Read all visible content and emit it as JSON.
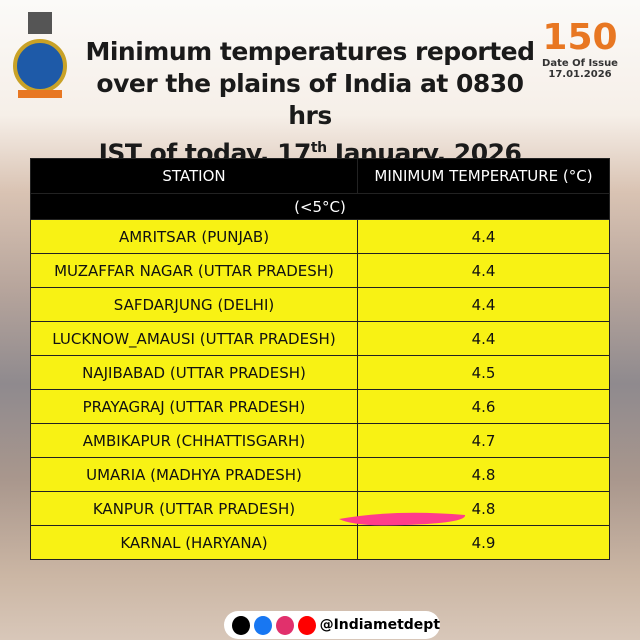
{
  "header": {
    "title_lines": [
      [
        "Minimum temperatures reported"
      ],
      [
        "over the plains of India at 0830 hrs"
      ],
      [
        "IST of today, 17",
        "th",
        " January, 2026"
      ]
    ],
    "badge": "150",
    "issue_label": "Date Of Issue",
    "issue_date": "17.01.2026"
  },
  "table": {
    "columns": [
      "STATION",
      "MINIMUM TEMPERATURE (°C)"
    ],
    "group": "(<5°C)",
    "rows": [
      [
        "AMRITSAR  (PUNJAB)",
        4.4
      ],
      [
        "MUZAFFAR NAGAR (UTTAR PRADESH)",
        4.4
      ],
      [
        "SAFDARJUNG (DELHI)",
        4.4
      ],
      [
        "LUCKNOW_AMAUSI (UTTAR PRADESH)",
        4.4
      ],
      [
        "NAJIBABAD (UTTAR PRADESH)",
        4.5
      ],
      [
        "PRAYAGRAJ (UTTAR PRADESH)",
        4.6
      ],
      [
        "AMBIKAPUR (CHHATTISGARH)",
        4.7
      ],
      [
        "UMARIA (MADHYA PRADESH)",
        4.8
      ],
      [
        "KANPUR (UTTAR PRADESH)",
        4.8
      ],
      [
        "KARNAL (HARYANA)",
        4.9
      ]
    ]
  },
  "footer": {
    "handle": "@Indiametdept"
  }
}
